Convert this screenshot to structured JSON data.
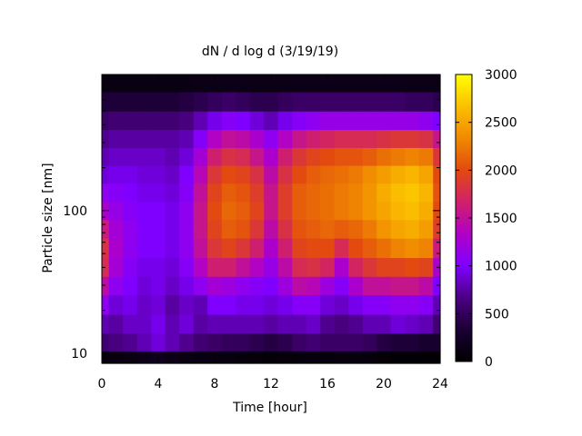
{
  "chart_data": {
    "type": "heatmap",
    "title": "dN / d log d (3/19/19)",
    "xlabel": "Time [hour]",
    "ylabel": "Particle size [nm]",
    "xlim": [
      0,
      24
    ],
    "ylim": [
      8.5,
      900
    ],
    "y_scale": "log",
    "x_ticks": [
      0,
      4,
      8,
      12,
      16,
      20,
      24
    ],
    "x_tick_labels": [
      "0",
      "4",
      "8",
      "12",
      "16",
      "20",
      "24"
    ],
    "y_ticks": [
      10,
      100
    ],
    "y_tick_labels": [
      "10",
      "100"
    ],
    "colorbar": {
      "min": 0,
      "max": 3000,
      "ticks": [
        0,
        500,
        1000,
        1500,
        2000,
        2500,
        3000
      ],
      "tick_labels": [
        "0",
        "500",
        "1000",
        "1500",
        "2000",
        "2500",
        "3000"
      ],
      "palette": [
        "#000000",
        "#1a0033",
        "#4b0082",
        "#7f00ff",
        "#b000c8",
        "#d0206a",
        "#e24a10",
        "#f08a00",
        "#fbc000",
        "#ffff00"
      ]
    },
    "x": [
      0,
      1,
      2,
      3,
      4,
      5,
      6,
      7,
      8,
      9,
      10,
      11,
      12,
      13,
      14,
      15,
      16,
      17,
      18,
      19,
      20,
      21,
      22,
      23,
      24
    ],
    "y": [
      9,
      12,
      16,
      22,
      30,
      40,
      55,
      75,
      100,
      135,
      180,
      240,
      320,
      430,
      580,
      800
    ],
    "values": [
      [
        80,
        100,
        120,
        160,
        180,
        150,
        120,
        100,
        90,
        90,
        80,
        60,
        50,
        60,
        70,
        80,
        80,
        90,
        90,
        70,
        40,
        30,
        30,
        30,
        20
      ],
      [
        600,
        650,
        700,
        800,
        900,
        800,
        700,
        600,
        550,
        500,
        500,
        450,
        400,
        450,
        550,
        600,
        550,
        550,
        550,
        500,
        400,
        350,
        350,
        300,
        300
      ],
      [
        800,
        750,
        850,
        850,
        950,
        800,
        900,
        750,
        800,
        800,
        800,
        800,
        750,
        800,
        800,
        850,
        700,
        650,
        700,
        800,
        800,
        900,
        850,
        800,
        600
      ],
      [
        1100,
        900,
        950,
        850,
        900,
        750,
        850,
        800,
        1000,
        1000,
        950,
        950,
        900,
        950,
        1050,
        1050,
        900,
        850,
        950,
        1050,
        1050,
        1100,
        1100,
        1050,
        800
      ],
      [
        1450,
        1100,
        1000,
        900,
        950,
        850,
        950,
        1100,
        1250,
        1200,
        1100,
        1050,
        1000,
        1200,
        1450,
        1400,
        1200,
        1050,
        1300,
        1500,
        1500,
        1550,
        1550,
        1450,
        1000
      ],
      [
        1750,
        1250,
        1050,
        950,
        950,
        900,
        1050,
        1350,
        1650,
        1650,
        1500,
        1350,
        1150,
        1450,
        1750,
        1800,
        1700,
        1300,
        1700,
        1850,
        1950,
        1950,
        2000,
        1950,
        1300
      ],
      [
        1800,
        1300,
        1100,
        1000,
        1000,
        950,
        1100,
        1500,
        1850,
        1950,
        1850,
        1650,
        1300,
        1650,
        1950,
        2000,
        2000,
        1750,
        2000,
        2100,
        2200,
        2300,
        2350,
        2300,
        1600
      ],
      [
        1600,
        1250,
        1100,
        1000,
        1000,
        950,
        1100,
        1550,
        1950,
        2100,
        2050,
        1850,
        1450,
        1800,
        2050,
        2100,
        2150,
        2100,
        2150,
        2250,
        2400,
        2500,
        2550,
        2450,
        1900
      ],
      [
        1300,
        1150,
        1050,
        1000,
        1000,
        950,
        1100,
        1550,
        2000,
        2150,
        2100,
        1950,
        1550,
        1900,
        2100,
        2150,
        2200,
        2250,
        2300,
        2400,
        2500,
        2600,
        2650,
        2550,
        2000
      ],
      [
        1100,
        1050,
        1000,
        950,
        950,
        900,
        1050,
        1500,
        1950,
        2100,
        2050,
        1900,
        1550,
        1900,
        2100,
        2150,
        2200,
        2250,
        2300,
        2400,
        2550,
        2650,
        2700,
        2600,
        2050
      ],
      [
        900,
        950,
        950,
        900,
        900,
        850,
        1000,
        1400,
        1850,
        2000,
        1950,
        1800,
        1450,
        1800,
        2000,
        2100,
        2150,
        2200,
        2250,
        2350,
        2450,
        2550,
        2600,
        2500,
        2000
      ],
      [
        800,
        850,
        850,
        850,
        850,
        800,
        900,
        1250,
        1650,
        1800,
        1750,
        1550,
        1300,
        1650,
        1850,
        1950,
        2000,
        2050,
        2050,
        2100,
        2200,
        2250,
        2300,
        2250,
        1850
      ],
      [
        700,
        750,
        750,
        750,
        750,
        750,
        800,
        1050,
        1350,
        1500,
        1450,
        1300,
        1100,
        1350,
        1550,
        1650,
        1700,
        1750,
        1750,
        1750,
        1800,
        1850,
        1850,
        1800,
        1550
      ],
      [
        550,
        600,
        600,
        600,
        600,
        600,
        650,
        800,
        950,
        1050,
        1000,
        900,
        800,
        950,
        1050,
        1100,
        1150,
        1150,
        1150,
        1150,
        1150,
        1150,
        1150,
        1100,
        1000
      ],
      [
        350,
        350,
        350,
        350,
        350,
        350,
        400,
        450,
        500,
        550,
        500,
        450,
        450,
        500,
        550,
        550,
        550,
        550,
        550,
        550,
        550,
        550,
        500,
        500,
        450
      ],
      [
        120,
        120,
        120,
        120,
        120,
        120,
        130,
        140,
        150,
        160,
        150,
        140,
        140,
        150,
        160,
        160,
        160,
        160,
        160,
        160,
        160,
        160,
        150,
        150,
        140
      ]
    ]
  }
}
